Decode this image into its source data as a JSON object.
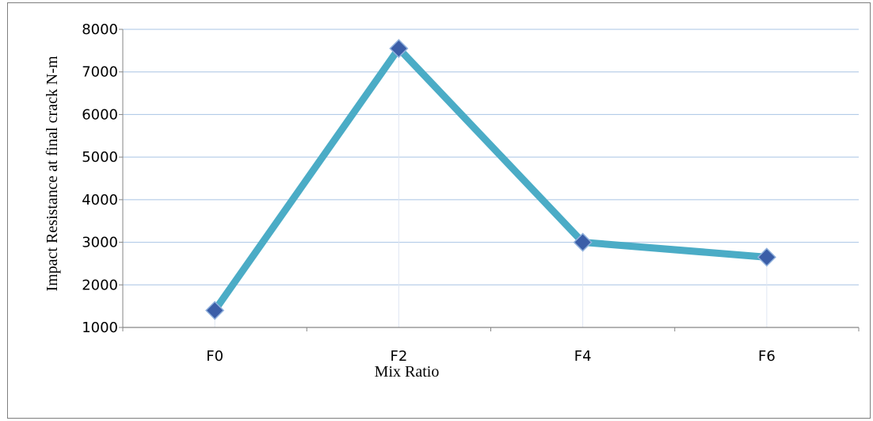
{
  "chart_data": {
    "type": "line",
    "title": "",
    "xlabel": "Mix Ratio",
    "ylabel": "Impact Resistance at final crack N-m",
    "categories": [
      "F0",
      "F2",
      "F4",
      "F6"
    ],
    "series": [
      {
        "values": [
          1400,
          7550,
          3000,
          2650
        ]
      }
    ],
    "ylim": [
      1000,
      8000
    ],
    "yticks": [
      "1000",
      "2000",
      "3000",
      "4000",
      "5000",
      "6000",
      "7000",
      "8000"
    ],
    "grid": true,
    "legend": "none",
    "colors": {
      "line": "#4bacc6",
      "marker": "#3b5ea8",
      "grid": "#a9c4e4",
      "axis": "#868686"
    }
  }
}
